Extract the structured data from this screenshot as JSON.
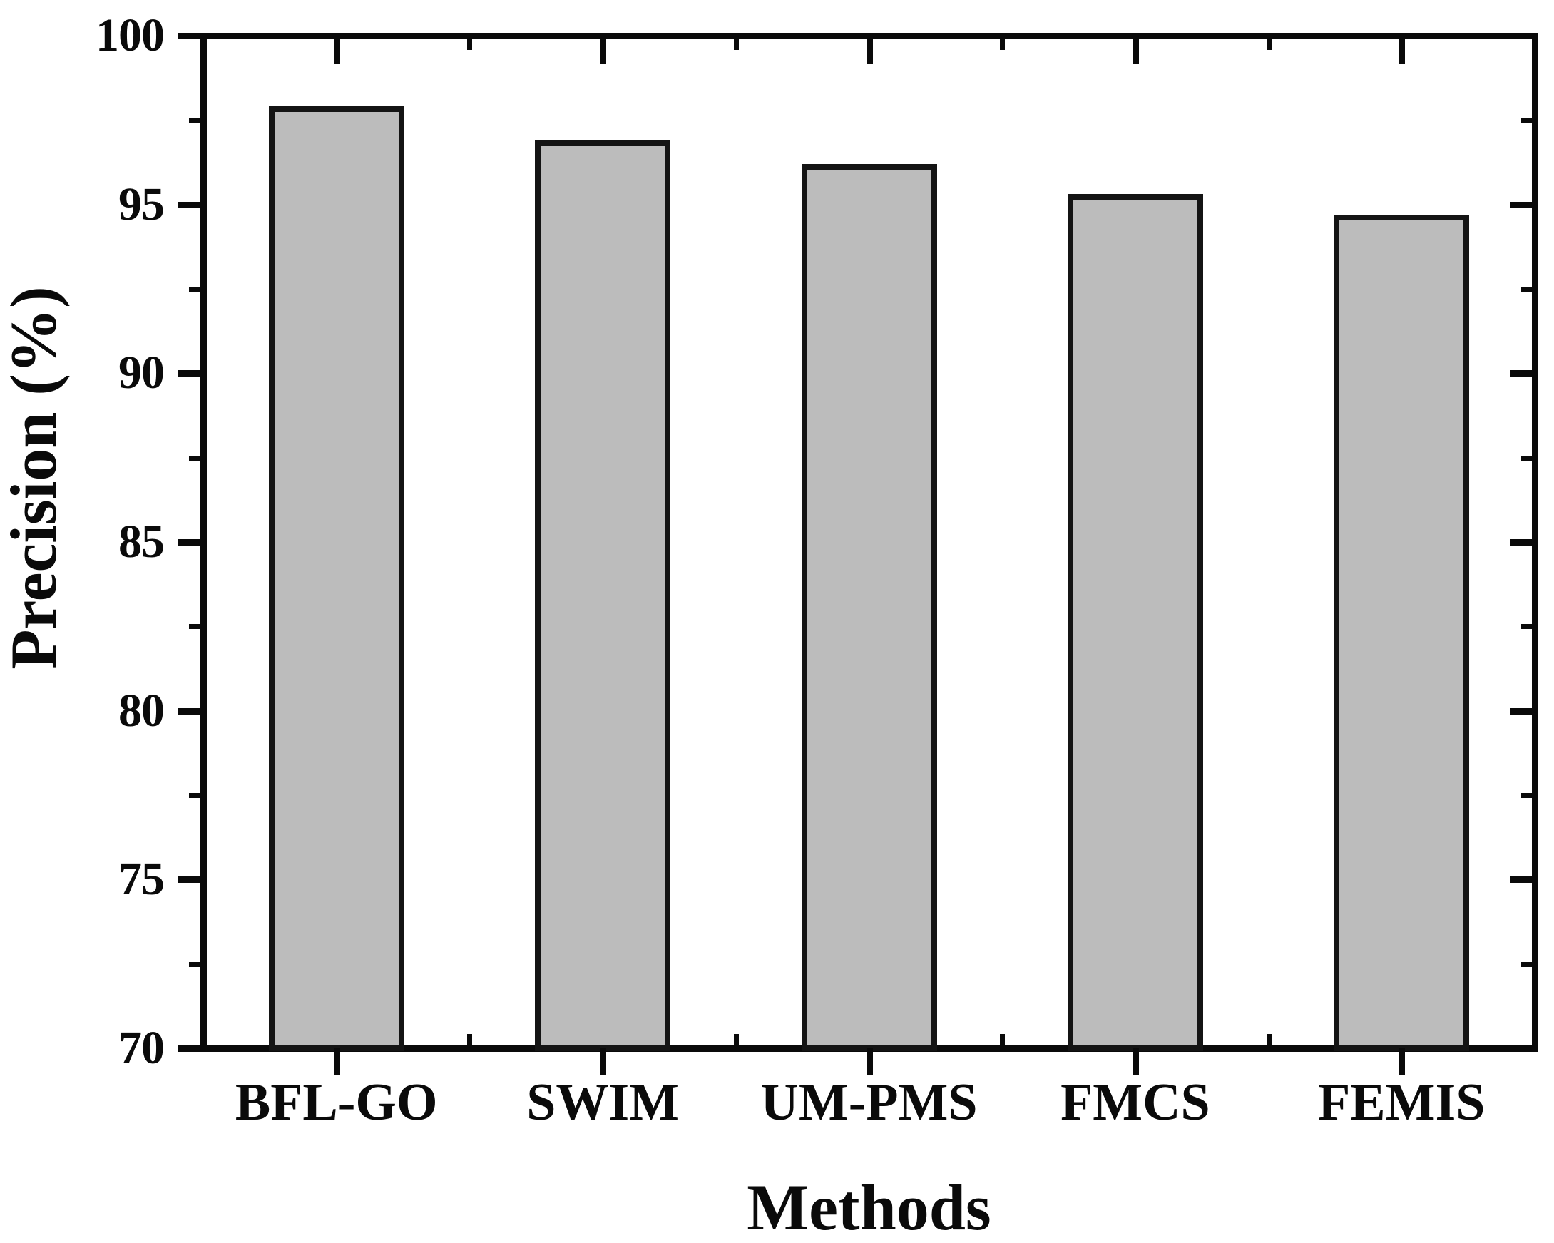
{
  "chart_data": {
    "type": "bar",
    "title": "",
    "categories": [
      "BFL-GO",
      "SWIM",
      "UM-PMS",
      "FMCS",
      "FEMIS"
    ],
    "values": [
      97.9,
      96.9,
      96.2,
      95.3,
      94.7
    ],
    "xlabel": "Methods",
    "ylabel": "Precision (%)",
    "ylim": [
      70,
      100
    ],
    "yticks": [
      70,
      75,
      80,
      85,
      90,
      95,
      100
    ],
    "ytick_labels": [
      "70",
      "75",
      "80",
      "85",
      "90",
      "95",
      "100"
    ],
    "y_minor_step": 2.5,
    "grid": false,
    "legend": null,
    "bar_fill_color": "#bcbcbc",
    "bar_border_color": "#141414",
    "axis_color": "#0a0a0a",
    "text_color": "#0a0a0a",
    "background_color": "#ffffff"
  }
}
